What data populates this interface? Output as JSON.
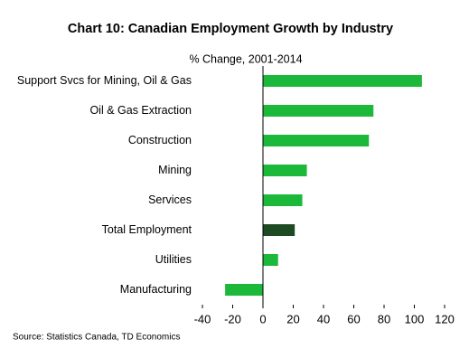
{
  "chart_data": {
    "type": "barh",
    "title": "Chart 10: Canadian Employment Growth by Industry",
    "subtitle": "% Change, 2001-2014",
    "source": "Source: Statistics Canada, TD Economics",
    "categories": [
      "Support Svcs for Mining, Oil & Gas",
      "Oil & Gas Extraction",
      "Construction",
      "Mining",
      "Services",
      "Total Employment",
      "Utilities",
      "Manufacturing"
    ],
    "values": [
      105,
      73,
      70,
      29,
      26,
      21,
      10,
      -25
    ],
    "colors": [
      "#1cb83a",
      "#1cb83a",
      "#1cb83a",
      "#1cb83a",
      "#1cb83a",
      "#1d4a22",
      "#1cb83a",
      "#1cb83a"
    ],
    "xlim": [
      -40,
      120
    ],
    "xticks": [
      -40,
      -20,
      0,
      20,
      40,
      60,
      80,
      100,
      120
    ]
  }
}
